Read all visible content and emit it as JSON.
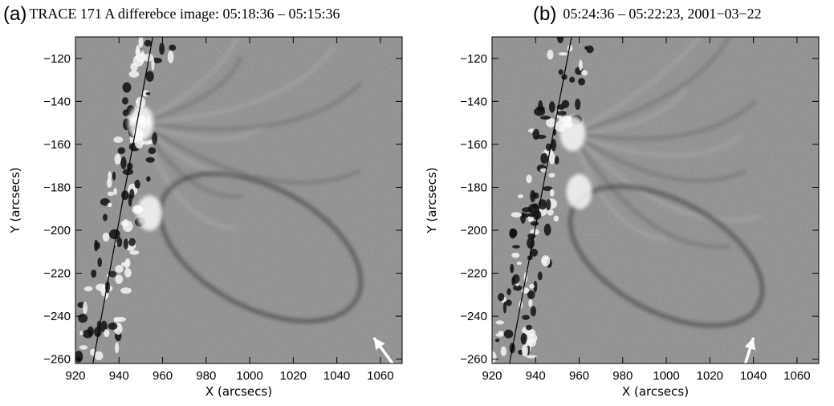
{
  "colors": {
    "background": "#ffffff",
    "axis": "#000000",
    "image_gray": "#8e8e8e",
    "arrow": "#ffffff"
  },
  "panels": [
    {
      "letter": "(a)",
      "title": "TRACE 171 A differebce image:   05:18:36 – 05:15:36",
      "xlabel": "X (arcsecs)",
      "ylabel": "Y (arcsecs)",
      "x_ticks": [
        "920",
        "940",
        "960",
        "980",
        "1000",
        "1020",
        "1040",
        "1060"
      ],
      "y_ticks": [
        "−120",
        "−140",
        "−160",
        "−180",
        "−200",
        "−220",
        "−240",
        "−260"
      ]
    },
    {
      "letter": "(b)",
      "title": "05:24:36 – 05:22:23,  2001−03−22",
      "xlabel": "X (arcsecs)",
      "ylabel": "Y (arcsecs)",
      "x_ticks": [
        "920",
        "940",
        "960",
        "980",
        "1000",
        "1020",
        "1040",
        "1060"
      ],
      "y_ticks": [
        "−120",
        "−140",
        "−160",
        "−180",
        "−200",
        "−220",
        "−240",
        "−260"
      ]
    }
  ],
  "chart_data": [
    {
      "type": "heatmap",
      "title": "TRACE 171 A differebce image:   05:18:36 – 05:15:36",
      "xlabel": "X (arcsecs)",
      "ylabel": "Y (arcsecs)",
      "xlim": [
        920,
        1070
      ],
      "ylim": [
        -262,
        -110
      ],
      "x_tick_values": [
        920,
        940,
        960,
        980,
        1000,
        1020,
        1040,
        1060
      ],
      "y_tick_values": [
        -120,
        -140,
        -160,
        -180,
        -200,
        -220,
        -240,
        -260
      ],
      "limb_line": {
        "x": [
          928,
          955.5
        ],
        "y": [
          -262,
          -110
        ]
      },
      "arrow": {
        "tail": [
          1067,
          -264
        ],
        "head": [
          1057,
          -250
        ]
      },
      "bright_regions": [
        {
          "x": 950,
          "y": -150
        },
        {
          "x": 954,
          "y": -192
        }
      ],
      "loop": {
        "center": [
          1005,
          -208
        ],
        "rx": 50,
        "ry": 28
      },
      "grid": false
    },
    {
      "type": "heatmap",
      "title": "05:24:36 – 05:22:23,  2001−03−22",
      "xlabel": "X (arcsecs)",
      "ylabel": "Y (arcsecs)",
      "xlim": [
        920,
        1070
      ],
      "ylim": [
        -262,
        -110
      ],
      "x_tick_values": [
        920,
        940,
        960,
        980,
        1000,
        1020,
        1040,
        1060
      ],
      "y_tick_values": [
        -120,
        -140,
        -160,
        -180,
        -200,
        -220,
        -240,
        -260
      ],
      "limb_line": {
        "x": [
          928,
          956.5
        ],
        "y": [
          -262,
          -110
        ]
      },
      "arrow": {
        "tail": [
          1036,
          -263
        ],
        "head": [
          1040,
          -250
        ]
      },
      "bright_regions": [
        {
          "x": 957,
          "y": -155
        },
        {
          "x": 960,
          "y": -182
        }
      ],
      "loop": {
        "center": [
          1000,
          -212
        ],
        "rx": 48,
        "ry": 26
      },
      "grid": false
    }
  ]
}
